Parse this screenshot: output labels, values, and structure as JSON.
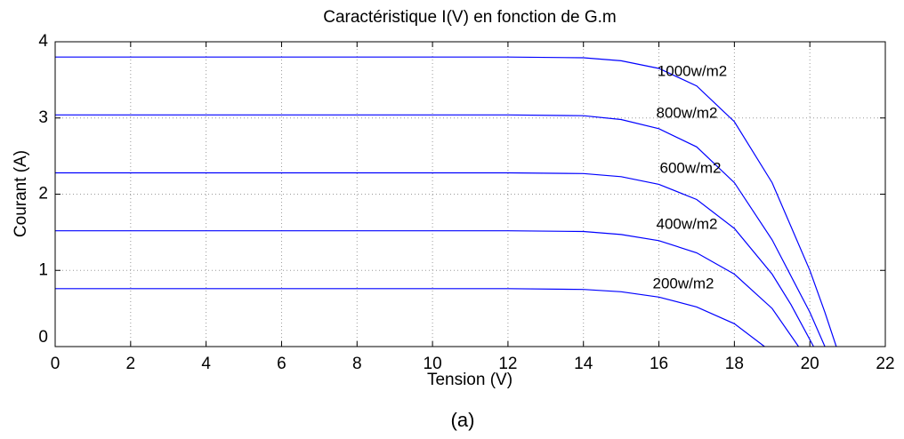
{
  "chart_data": {
    "type": "line",
    "title": "Caractéristique I(V) en fonction de G.m",
    "xlabel": "Tension (V)",
    "ylabel": "Courant (A)",
    "caption": "(a)",
    "xlim": [
      0,
      22
    ],
    "ylim": [
      0,
      4
    ],
    "xticks": [
      0,
      2,
      4,
      6,
      8,
      10,
      12,
      14,
      16,
      18,
      20,
      22
    ],
    "yticks": [
      0,
      1,
      2,
      3,
      4
    ],
    "grid": true,
    "series": [
      {
        "name": "1000w/m2",
        "color": "#0000ff",
        "x": [
          0,
          12,
          14,
          15,
          16,
          17,
          18,
          19,
          20,
          20.4,
          20.7
        ],
        "values": [
          3.8,
          3.8,
          3.79,
          3.75,
          3.65,
          3.42,
          2.95,
          2.15,
          1.0,
          0.45,
          0
        ]
      },
      {
        "name": "800w/m2",
        "color": "#0000ff",
        "x": [
          0,
          12,
          14,
          15,
          16,
          17,
          18,
          19,
          20,
          20.4
        ],
        "values": [
          3.04,
          3.04,
          3.03,
          2.98,
          2.86,
          2.62,
          2.15,
          1.4,
          0.45,
          0
        ]
      },
      {
        "name": "600w/m2",
        "color": "#0000ff",
        "x": [
          0,
          12,
          14,
          15,
          16,
          17,
          18,
          19,
          19.5,
          20.1
        ],
        "values": [
          2.28,
          2.28,
          2.27,
          2.23,
          2.13,
          1.93,
          1.55,
          0.95,
          0.55,
          0
        ]
      },
      {
        "name": "400w/m2",
        "color": "#0000ff",
        "x": [
          0,
          12,
          14,
          15,
          16,
          17,
          18,
          19,
          19.7
        ],
        "values": [
          1.52,
          1.52,
          1.51,
          1.47,
          1.39,
          1.23,
          0.95,
          0.5,
          0
        ]
      },
      {
        "name": "200w/m2",
        "color": "#0000ff",
        "x": [
          0,
          12,
          14,
          15,
          16,
          17,
          18,
          18.8
        ],
        "values": [
          0.76,
          0.76,
          0.75,
          0.72,
          0.65,
          0.52,
          0.3,
          0
        ]
      }
    ]
  }
}
